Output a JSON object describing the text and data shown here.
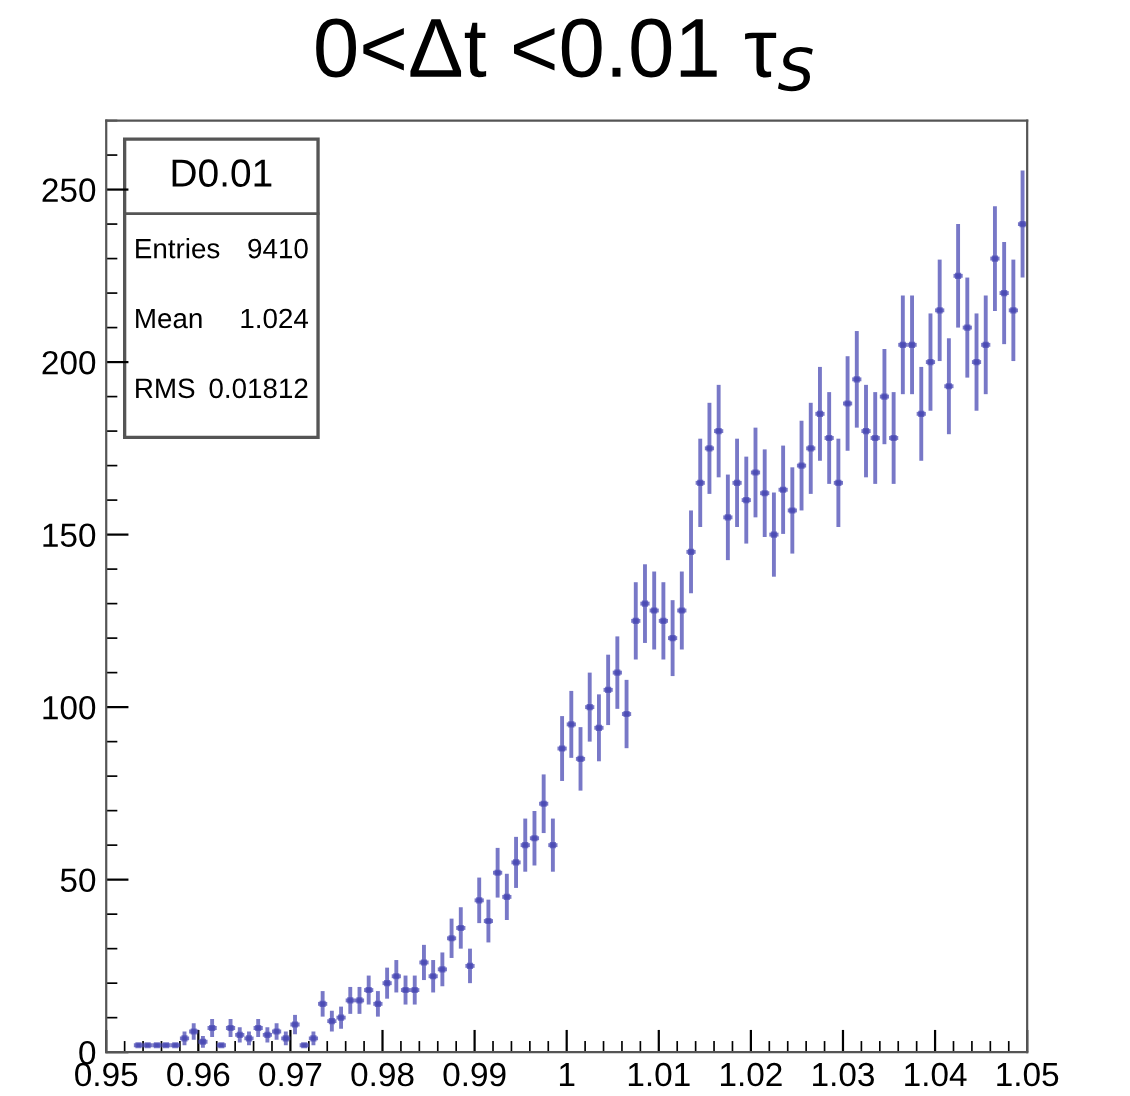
{
  "chart_data": {
    "type": "scatter",
    "title": "0<Δt <0.01 τ$_{S}$",
    "annotations": [
      "D0.01",
      "Entries",
      "9410",
      "Mean",
      "1.024",
      "RMS",
      "0.01812"
    ],
    "x": [
      0.9535,
      0.9545,
      0.9555,
      0.9565,
      0.9575,
      0.9585,
      0.9595,
      0.9605,
      0.9615,
      0.9625,
      0.9635,
      0.9645,
      0.9655,
      0.9665,
      0.9675,
      0.9685,
      0.9695,
      0.9705,
      0.9715,
      0.9725,
      0.9735,
      0.9745,
      0.9755,
      0.9765,
      0.9775,
      0.9785,
      0.9795,
      0.9805,
      0.9815,
      0.9825,
      0.9835,
      0.9845,
      0.9855,
      0.9865,
      0.9875,
      0.9885,
      0.9895,
      0.9905,
      0.9915,
      0.9925,
      0.9935,
      0.9945,
      0.9955,
      0.9965,
      0.9975,
      0.9985,
      0.9995,
      1.0005,
      1.0015,
      1.0025,
      1.0035,
      1.0045,
      1.0055,
      1.0065,
      1.0075,
      1.0085,
      1.0095,
      1.0105,
      1.0115,
      1.0125,
      1.0135,
      1.0145,
      1.0155,
      1.0165,
      1.0175,
      1.0185,
      1.0195,
      1.0205,
      1.0215,
      1.0225,
      1.0235,
      1.0245,
      1.0255,
      1.0265,
      1.0275,
      1.0285,
      1.0295,
      1.0305,
      1.0315,
      1.0325,
      1.0335,
      1.0345,
      1.0355,
      1.0365,
      1.0375,
      1.0385,
      1.0395,
      1.0405,
      1.0415,
      1.0425,
      1.0435,
      1.0445,
      1.0455,
      1.0465,
      1.0475,
      1.0485,
      1.0495
    ],
    "values": [
      2,
      2,
      2,
      2,
      2,
      4,
      6,
      3,
      7,
      2,
      7,
      5,
      4,
      7,
      5,
      6,
      4,
      8,
      2,
      4,
      14,
      9,
      10,
      15,
      15,
      18,
      14,
      20,
      22,
      18,
      18,
      26,
      22,
      24,
      33,
      36,
      25,
      44,
      38,
      52,
      45,
      55,
      60,
      62,
      72,
      60,
      88,
      95,
      85,
      100,
      94,
      105,
      110,
      98,
      125,
      130,
      128,
      125,
      120,
      128,
      145,
      165,
      175,
      180,
      155,
      165,
      160,
      168,
      162,
      150,
      163,
      157,
      170,
      175,
      185,
      178,
      165,
      188,
      195,
      180,
      178,
      190,
      178,
      205,
      205,
      185,
      200,
      215,
      193,
      225,
      210,
      200,
      205,
      230,
      220,
      215,
      240
    ],
    "errors": [
      null,
      null,
      null,
      null,
      null,
      2,
      2.4,
      1.7,
      2.6,
      null,
      2.6,
      2.2,
      2,
      2.6,
      2.2,
      2.4,
      2,
      2.8,
      null,
      2,
      3.7,
      3,
      3.2,
      3.9,
      3.9,
      4.2,
      3.7,
      4.5,
      4.7,
      4.2,
      4.2,
      5.1,
      4.7,
      4.9,
      5.7,
      6,
      5,
      6.6,
      6.2,
      7.2,
      6.7,
      7.4,
      7.7,
      7.9,
      8.5,
      7.7,
      9.4,
      9.7,
      9.2,
      10,
      9.7,
      10.2,
      10.5,
      9.9,
      11.2,
      11.4,
      11.3,
      11.2,
      11,
      11.3,
      12,
      12.8,
      13.2,
      13.4,
      12.4,
      12.8,
      12.6,
      13,
      12.7,
      12.2,
      12.8,
      12.5,
      13,
      13.2,
      13.6,
      13.3,
      12.8,
      13.7,
      14,
      13.4,
      13.3,
      13.8,
      13.3,
      14.3,
      14.3,
      13.6,
      14.1,
      14.7,
      13.9,
      15,
      14.5,
      14.1,
      14.3,
      15.2,
      14.8,
      14.7,
      15.5
    ],
    "xerrors": [
      0.0005,
      0.0005,
      0.0005,
      0.0005,
      0.0005,
      0.0005,
      0.0005,
      0.0005,
      0.0005,
      0.0005,
      0.0005,
      0.0005,
      0.0005,
      0.0005,
      0.0005,
      0.0005,
      0.0005,
      0.0005,
      0.0005,
      0.0005,
      0.0005,
      0.0005,
      0.0005,
      0.0005,
      0.0005,
      0.0005,
      0.0005,
      0.0005,
      0.0005,
      0.0005,
      0.0005,
      0.0005,
      0.0005,
      0.0005,
      0.0005,
      0.0005,
      0.0005,
      0.0005,
      0.0005,
      0.0005,
      0.0005,
      0.0005,
      0.0005,
      0.0005,
      0.0005,
      0.0005,
      0.0005,
      0.0005,
      0.0005,
      0.0005,
      0.0005,
      0.0005,
      0.0005,
      0.0005,
      0.0005,
      0.0005,
      0.0005,
      0.0005,
      0.0005,
      0.0005,
      0.0005,
      0.0005,
      0.0005,
      0.0005,
      0.0005,
      0.0005,
      0.0005,
      0.0005,
      0.0005,
      0.0005,
      0.0005,
      0.0005,
      0.0005,
      0.0005,
      0.0005,
      0.0005,
      0.0005,
      0.0005,
      0.0005,
      0.0005,
      0.0005,
      0.0005,
      0.0005,
      0.0005,
      0.0005,
      0.0005,
      0.0005,
      0.0005,
      0.0005,
      0.0005,
      0.0005,
      0.0005,
      0.0005,
      0.0005,
      0.0005,
      0.0005,
      0.0005
    ],
    "color": "#4b4bb4",
    "marker": "square",
    "xlim": [
      0.95,
      1.05
    ],
    "xticks": [
      0.95,
      0.96,
      0.97,
      0.98,
      0.99,
      1,
      1.01,
      1.02,
      1.03,
      1.04,
      1.05
    ],
    "ylim": [
      0,
      270
    ],
    "yticks": [
      0,
      50,
      100,
      150,
      200,
      250
    ]
  }
}
